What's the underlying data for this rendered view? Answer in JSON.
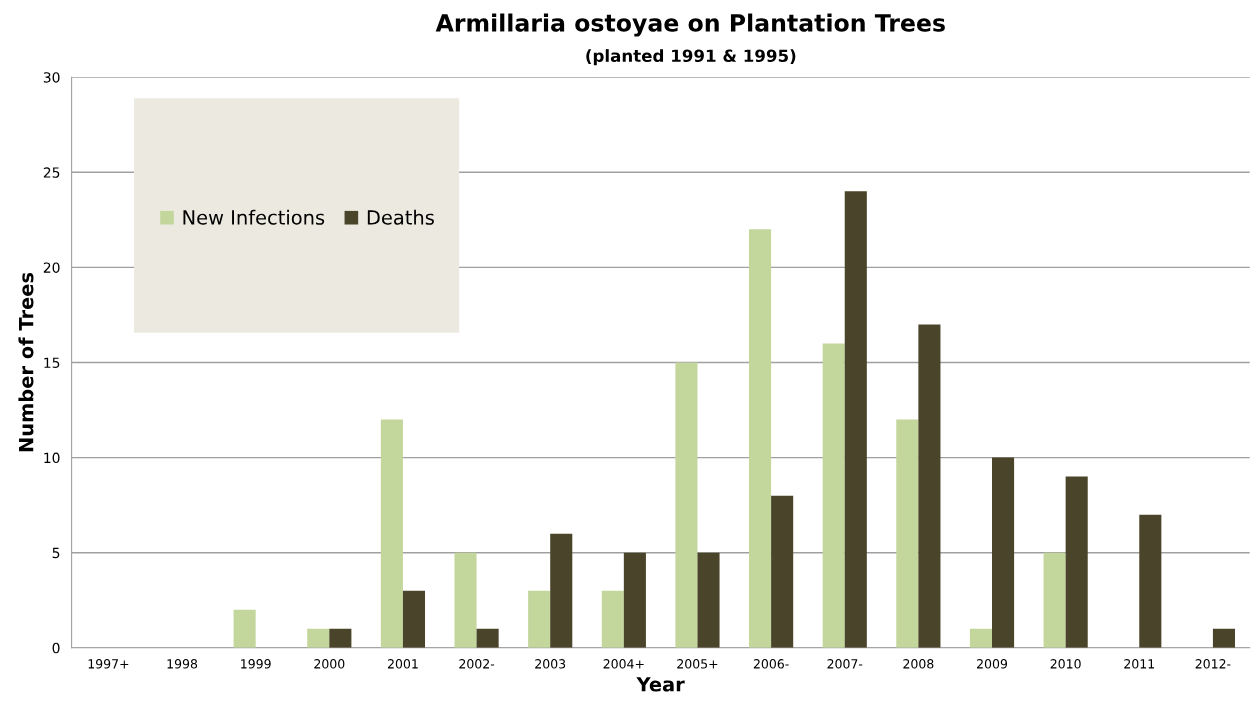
{
  "chart_data": {
    "type": "bar",
    "title": "Armillaria ostoyae on Plantation Trees",
    "subtitle": "(planted 1991 & 1995)",
    "xlabel": "Year",
    "ylabel": "Number of Trees",
    "categories": [
      "1997+",
      "1998",
      "1999",
      "2000",
      "2001",
      "2002-",
      "2003",
      "2004+",
      "2005+",
      "2006-",
      "2007-",
      "2008",
      "2009",
      "2010",
      "2011",
      "2012-"
    ],
    "series": [
      {
        "name": "New Infections",
        "color": "#c3d69b",
        "values": [
          0,
          0,
          2,
          1,
          12,
          5,
          3,
          3,
          15,
          22,
          16,
          12,
          1,
          5,
          0,
          0
        ]
      },
      {
        "name": "Deaths",
        "color": "#4a452a",
        "values": [
          0,
          0,
          0,
          1,
          3,
          1,
          6,
          5,
          5,
          8,
          24,
          17,
          10,
          9,
          7,
          1
        ]
      }
    ],
    "ylim": [
      0,
      30
    ],
    "yticks": [
      0,
      5,
      10,
      15,
      20,
      25,
      30
    ],
    "grid": "y",
    "legend": "top left"
  }
}
